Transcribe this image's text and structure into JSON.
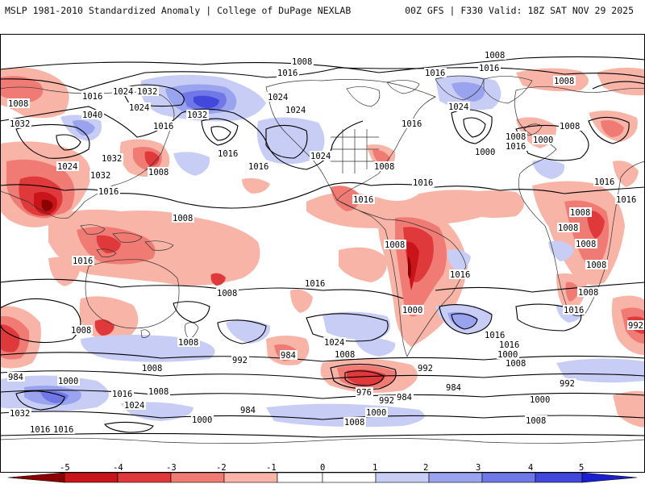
{
  "header": {
    "title_left": "MSLP 1981-2010 Standardized Anomaly | College of DuPage NEXLAB",
    "title_right": "00Z GFS | F330 Valid: 18Z SAT NOV 29 2025"
  },
  "colors": {
    "neg5": "#8b0000",
    "neg4": "#c8141a",
    "neg3": "#e0393b",
    "neg2": "#f07a74",
    "neg1": "#f9b4a8",
    "zero": "#ffffff",
    "pos1": "#c8cdf6",
    "pos2": "#9aa3ee",
    "pos3": "#6f78e6",
    "pos4": "#4248dc",
    "pos5": "#1c1fd0",
    "coast": "#333333",
    "contour": "#000000"
  },
  "colorbar": {
    "ticks": [
      "-5",
      "-4",
      "-3",
      "-2",
      "-1",
      "0",
      "1",
      "2",
      "3",
      "4",
      "5"
    ]
  },
  "isobar_labels": [
    {
      "id": "l1",
      "text": "1008"
    },
    {
      "id": "l2",
      "text": "1008"
    },
    {
      "id": "l3",
      "text": "1016"
    },
    {
      "id": "l4",
      "text": "1016"
    },
    {
      "id": "l5",
      "text": "1016"
    },
    {
      "id": "l6",
      "text": "1008"
    },
    {
      "id": "l7",
      "text": "1024"
    },
    {
      "id": "l8",
      "text": "1032"
    },
    {
      "id": "l9",
      "text": "1024"
    },
    {
      "id": "l10",
      "text": "1032"
    },
    {
      "id": "l11",
      "text": "1040"
    },
    {
      "id": "l12",
      "text": "1032"
    },
    {
      "id": "l13",
      "text": "1016"
    },
    {
      "id": "l14",
      "text": "1032"
    },
    {
      "id": "l15",
      "text": "1024"
    },
    {
      "id": "l16",
      "text": "1024"
    },
    {
      "id": "l17",
      "text": "1016"
    },
    {
      "id": "l18",
      "text": "1016"
    },
    {
      "id": "l19",
      "text": "1024"
    },
    {
      "id": "l20",
      "text": "1032"
    },
    {
      "id": "l21",
      "text": "1016"
    },
    {
      "id": "l22",
      "text": "1008"
    },
    {
      "id": "l23",
      "text": "1016"
    },
    {
      "id": "l24",
      "text": "1024"
    },
    {
      "id": "l25",
      "text": "1016"
    },
    {
      "id": "l26",
      "text": "1008"
    },
    {
      "id": "l27",
      "text": "1016"
    },
    {
      "id": "l28",
      "text": "1016"
    },
    {
      "id": "l29",
      "text": "1024"
    },
    {
      "id": "l30",
      "text": "1000"
    },
    {
      "id": "l31",
      "text": "1008"
    },
    {
      "id": "l32",
      "text": "1016"
    },
    {
      "id": "l33",
      "text": "1000"
    },
    {
      "id": "l34",
      "text": "1008"
    },
    {
      "id": "l35",
      "text": "1016"
    },
    {
      "id": "l36",
      "text": "1016"
    },
    {
      "id": "l37",
      "text": "1008"
    },
    {
      "id": "l38",
      "text": "1008"
    },
    {
      "id": "l39",
      "text": "1008"
    },
    {
      "id": "l40",
      "text": "1008"
    },
    {
      "id": "l41",
      "text": "1008"
    },
    {
      "id": "l42",
      "text": "1016"
    },
    {
      "id": "l43",
      "text": "1008"
    },
    {
      "id": "l44",
      "text": "1016"
    },
    {
      "id": "l45",
      "text": "1008"
    },
    {
      "id": "l46",
      "text": "1008"
    },
    {
      "id": "l47",
      "text": "1016"
    },
    {
      "id": "l48",
      "text": "1008"
    },
    {
      "id": "l49",
      "text": "1016"
    },
    {
      "id": "l50",
      "text": "1000"
    },
    {
      "id": "l51",
      "text": "1016"
    },
    {
      "id": "l52",
      "text": "1016"
    },
    {
      "id": "l53",
      "text": "1008"
    },
    {
      "id": "l54",
      "text": "1024"
    },
    {
      "id": "l55",
      "text": "992"
    },
    {
      "id": "l56",
      "text": "984"
    },
    {
      "id": "l57",
      "text": "1008"
    },
    {
      "id": "l58",
      "text": "1008"
    },
    {
      "id": "l59",
      "text": "1000"
    },
    {
      "id": "l60",
      "text": "984"
    },
    {
      "id": "l61",
      "text": "1000"
    },
    {
      "id": "l62",
      "text": "1008"
    },
    {
      "id": "l63",
      "text": "1016"
    },
    {
      "id": "l64",
      "text": "1008"
    },
    {
      "id": "l65",
      "text": "1024"
    },
    {
      "id": "l66",
      "text": "1032"
    },
    {
      "id": "l67",
      "text": "1016"
    },
    {
      "id": "l68",
      "text": "1000"
    },
    {
      "id": "l69",
      "text": "984"
    },
    {
      "id": "l70",
      "text": "976"
    },
    {
      "id": "l71",
      "text": "992"
    },
    {
      "id": "l72",
      "text": "984"
    },
    {
      "id": "l73",
      "text": "992"
    },
    {
      "id": "l74",
      "text": "984"
    },
    {
      "id": "l75",
      "text": "1000"
    },
    {
      "id": "l76",
      "text": "1008"
    },
    {
      "id": "l77",
      "text": "1000"
    },
    {
      "id": "l78",
      "text": "992"
    },
    {
      "id": "l79",
      "text": "1008"
    },
    {
      "id": "l80",
      "text": "992"
    },
    {
      "id": "l81",
      "text": "1016"
    },
    {
      "id": "l82",
      "text": "1008"
    }
  ]
}
